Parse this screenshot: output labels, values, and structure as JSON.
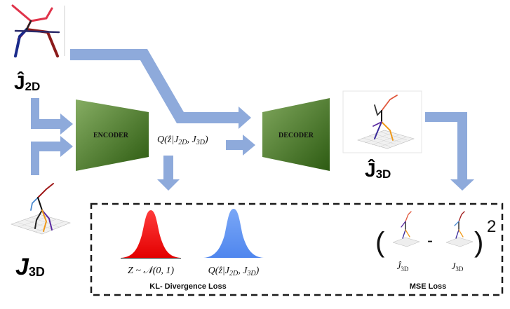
{
  "colors": {
    "arrow": "#8eaadb",
    "block_light": "#7aa45a",
    "block_dark": "#2f5d12",
    "gauss_red": "#ff1a1a",
    "gauss_blue": "#5b8ff0",
    "dashed_border": "#1a1a1a"
  },
  "icons": {
    "arrow": "thick-arrow-icon",
    "pose_2d": "2d-skeleton-icon",
    "pose_3d": "3d-skeleton-plot-icon"
  },
  "labels": {
    "j2d": {
      "main": "Ĵ",
      "sub": "2D"
    },
    "j3d_pred": {
      "main": "Ĵ",
      "sub": "3D"
    },
    "j3d_gt": {
      "main": "J",
      "sub": "3D"
    },
    "encoder": "ENCODER",
    "decoder": "DECODER",
    "posterior": "Q(ẑ|J₂D, J₃D)"
  },
  "posterior_text": {
    "q": "Q(ẑ|J",
    "sub1": "2D",
    "mid": ", J",
    "sub2": "3D",
    "end": ")"
  },
  "loss_box": {
    "prior": {
      "main": "Z ~ 𝒩(0, 1)"
    },
    "posterior": {
      "q": "Q(ẑ|J",
      "sub1": "2D",
      "mid": ", J",
      "sub2": "3D",
      "end": ")"
    },
    "kl_label": "KL- Divergence Loss",
    "mse_label": "MSE Loss",
    "mse_open_paren": "(",
    "mse_close_paren": ")",
    "mse_minus": "-",
    "mse_exponent": "2",
    "mse_term1": {
      "main": "Ĵ",
      "sub": "3D"
    },
    "mse_term2": {
      "main": "J",
      "sub": "3D"
    }
  }
}
